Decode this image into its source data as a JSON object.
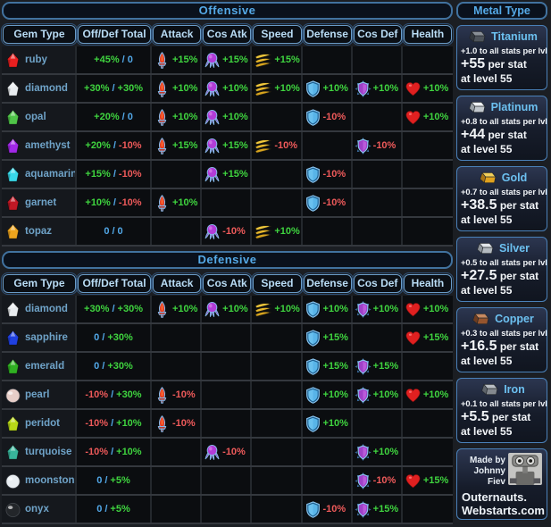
{
  "colors": {
    "positive": "#3fd43f",
    "negative": "#ee5a5a",
    "neutral_blue": "#52a8e8",
    "panel_border": "#4a80b8",
    "title_text": "#55aae8"
  },
  "table_headers": {
    "gem": "Gem Type",
    "total": "Off/Def Total"
  },
  "stat_columns": [
    {
      "key": "attack",
      "label": "Attack",
      "icon": "attack-icon"
    },
    {
      "key": "cos_atk",
      "label": "Cos Atk",
      "icon": "cos-atk-icon"
    },
    {
      "key": "speed",
      "label": "Speed",
      "icon": "speed-icon"
    },
    {
      "key": "defense",
      "label": "Defense",
      "icon": "defense-icon"
    },
    {
      "key": "cos_def",
      "label": "Cos Def",
      "icon": "cos-def-icon"
    },
    {
      "key": "health",
      "label": "Health",
      "icon": "heart-icon"
    }
  ],
  "tables": [
    {
      "title": "Offensive",
      "rows": [
        {
          "gem": "ruby",
          "gem_color": "#e82020",
          "gem_shape": "gem",
          "total": [
            "+45%",
            "0"
          ],
          "stats": {
            "attack": "+15%",
            "cos_atk": "+15%",
            "speed": "+15%"
          }
        },
        {
          "gem": "diamond",
          "gem_color": "#e8ecef",
          "gem_shape": "gem",
          "total": [
            "+30%",
            "+30%"
          ],
          "stats": {
            "attack": "+10%",
            "cos_atk": "+10%",
            "speed": "+10%",
            "defense": "+10%",
            "cos_def": "+10%",
            "health": "+10%"
          }
        },
        {
          "gem": "opal",
          "gem_color": "#4fc448",
          "gem_shape": "gem",
          "total": [
            "+20%",
            "0"
          ],
          "stats": {
            "attack": "+10%",
            "cos_atk": "+10%",
            "defense": "-10%",
            "health": "+10%"
          }
        },
        {
          "gem": "amethyst",
          "gem_color": "#a228e8",
          "gem_shape": "gem",
          "total": [
            "+20%",
            "-10%"
          ],
          "stats": {
            "attack": "+15%",
            "cos_atk": "+15%",
            "speed": "-10%",
            "cos_def": "-10%"
          }
        },
        {
          "gem": "aquamarine",
          "gem_color": "#38d8e8",
          "gem_shape": "gem",
          "total": [
            "+15%",
            "-10%"
          ],
          "stats": {
            "cos_atk": "+15%",
            "defense": "-10%"
          }
        },
        {
          "gem": "garnet",
          "gem_color": "#c01825",
          "gem_shape": "gem",
          "total": [
            "+10%",
            "-10%"
          ],
          "stats": {
            "attack": "+10%",
            "defense": "-10%"
          }
        },
        {
          "gem": "topaz",
          "gem_color": "#eda41e",
          "gem_shape": "gem",
          "total": [
            "0",
            "0"
          ],
          "stats": {
            "cos_atk": "-10%",
            "speed": "+10%"
          }
        }
      ]
    },
    {
      "title": "Defensive",
      "rows": [
        {
          "gem": "diamond",
          "gem_color": "#e8ecef",
          "gem_shape": "gem",
          "total": [
            "+30%",
            "+30%"
          ],
          "stats": {
            "attack": "+10%",
            "cos_atk": "+10%",
            "speed": "+10%",
            "defense": "+10%",
            "cos_def": "+10%",
            "health": "+10%"
          }
        },
        {
          "gem": "sapphire",
          "gem_color": "#2040e0",
          "gem_shape": "gem",
          "total": [
            "0",
            "+30%"
          ],
          "stats": {
            "defense": "+15%",
            "health": "+15%"
          }
        },
        {
          "gem": "emerald",
          "gem_color": "#30b022",
          "gem_shape": "gem",
          "total": [
            "0",
            "+30%"
          ],
          "stats": {
            "defense": "+15%",
            "cos_def": "+15%"
          }
        },
        {
          "gem": "pearl",
          "gem_color": "#e7cec8",
          "gem_shape": "sphere",
          "total": [
            "-10%",
            "+30%"
          ],
          "stats": {
            "attack": "-10%",
            "defense": "+10%",
            "cos_def": "+10%",
            "health": "+10%"
          }
        },
        {
          "gem": "peridot",
          "gem_color": "#b8d818",
          "gem_shape": "gem",
          "total": [
            "-10%",
            "+10%"
          ],
          "stats": {
            "attack": "-10%",
            "defense": "+10%"
          }
        },
        {
          "gem": "turquoise",
          "gem_color": "#38b49a",
          "gem_shape": "gem",
          "total": [
            "-10%",
            "+10%"
          ],
          "stats": {
            "cos_atk": "-10%",
            "cos_def": "+10%"
          }
        },
        {
          "gem": "moonstone",
          "gem_color": "#e9eef2",
          "gem_shape": "sphere",
          "total": [
            "0",
            "+5%"
          ],
          "stats": {
            "cos_def": "-10%",
            "health": "+15%"
          }
        },
        {
          "gem": "onyx",
          "gem_color": "#23262a",
          "gem_shape": "sphere",
          "total": [
            "0",
            "+5%"
          ],
          "stats": {
            "defense": "-10%",
            "cos_def": "+15%"
          }
        }
      ]
    }
  ],
  "sidebar": {
    "title": "Metal Type",
    "metals": [
      {
        "name": "Titanium",
        "ingot_colors": [
          "#8a9097",
          "#4e545b",
          "#33383e"
        ],
        "per_lvl": "+1.0 to all stats per lvl",
        "per_stat_value": "+55",
        "per_stat_label": "per stat",
        "at_level": "at level 55"
      },
      {
        "name": "Platinum",
        "ingot_colors": [
          "#eef1f4",
          "#c2c8ce",
          "#9aa1a8"
        ],
        "per_lvl": "+0.8 to all stats per lvl",
        "per_stat_value": "+44",
        "per_stat_label": "per stat",
        "at_level": "at level 55"
      },
      {
        "name": "Gold",
        "ingot_colors": [
          "#f2cf5a",
          "#e0a21e",
          "#a87414"
        ],
        "per_lvl": "+0.7 to all stats per lvl",
        "per_stat_value": "+38.5",
        "per_stat_label": "per stat",
        "at_level": "at level 55"
      },
      {
        "name": "Silver",
        "ingot_colors": [
          "#e2e6ea",
          "#b4bac0",
          "#8d939a"
        ],
        "per_lvl": "+0.5 to all stats per lvl",
        "per_stat_value": "+27.5",
        "per_stat_label": "per stat",
        "at_level": "at level 55"
      },
      {
        "name": "Copper",
        "ingot_colors": [
          "#c88a60",
          "#96552e",
          "#6e3c20"
        ],
        "per_lvl": "+0.3 to all stats per lvl",
        "per_stat_value": "+16.5",
        "per_stat_label": "per stat",
        "at_level": "at level 55"
      },
      {
        "name": "Iron",
        "ingot_colors": [
          "#b9bec4",
          "#84898f",
          "#5e646b"
        ],
        "per_lvl": "+0.1 to all stats per lvl",
        "per_stat_value": "+5.5",
        "per_stat_label": "per stat",
        "at_level": "at level 55"
      }
    ],
    "footer": {
      "made_by_line1": "Made by",
      "made_by_line2": "Johnny Fiev",
      "site_line1": "Outernauts.",
      "site_line2": "Webstarts.com"
    }
  }
}
